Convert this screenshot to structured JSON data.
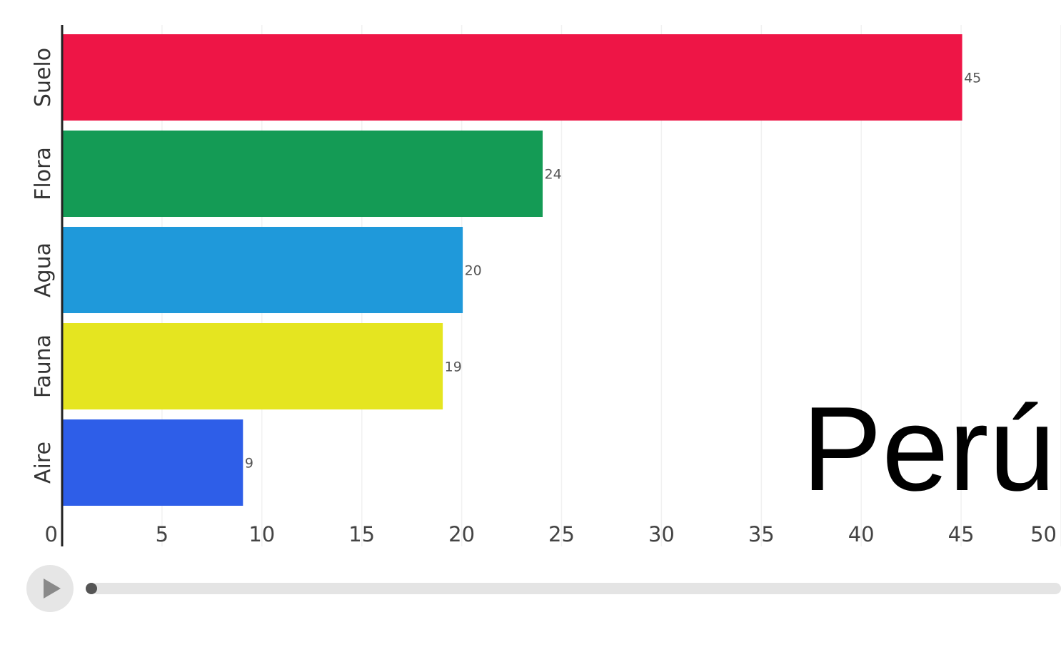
{
  "chart_data": {
    "type": "bar",
    "orientation": "horizontal",
    "categories": [
      "Suelo",
      "Flora",
      "Agua",
      "Fauna",
      "Aire"
    ],
    "values": [
      45,
      24,
      20,
      19,
      9
    ],
    "colors": [
      "#ee1546",
      "#149b55",
      "#1f99da",
      "#e5e520",
      "#2e5ee8"
    ],
    "xlim": [
      0,
      50
    ],
    "xticks": [
      "0",
      "5",
      "10",
      "15",
      "20",
      "25",
      "30",
      "35",
      "40",
      "45",
      "50"
    ],
    "grid": true,
    "annotation": "Perú",
    "title": "",
    "xlabel": "",
    "ylabel": ""
  },
  "player": {
    "play_icon": "play-icon",
    "progress": 0
  }
}
